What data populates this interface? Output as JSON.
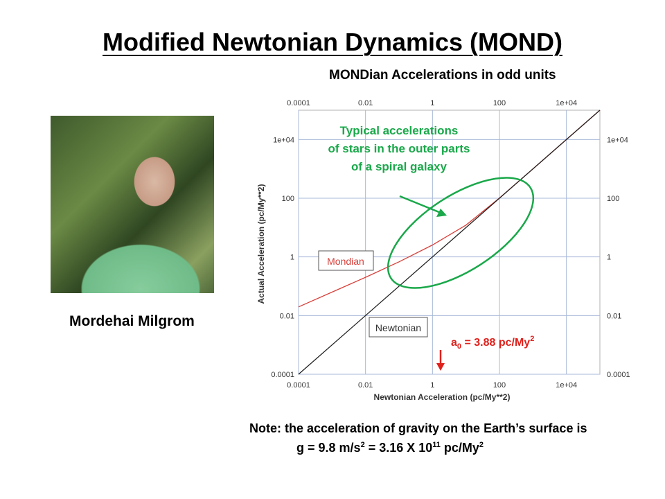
{
  "slide": {
    "title": "Modified Newtonian Dynamics (MOND)",
    "chart_subtitle": "MONDian Accelerations in odd units",
    "photo_caption": "Mordehai Milgrom",
    "note_line1": "Note: the acceleration of gravity on the Earth’s surface is",
    "note_g": "g = 9.8 m/s",
    "note_g_exp": "2",
    "note_eq": " = 3.16 X 10",
    "note_eq_exp": "11",
    "note_unit": " pc/My",
    "note_unit_exp": "2"
  },
  "annotations": {
    "green_text": [
      "Typical accelerations",
      "of stars in the outer parts",
      "of a spiral galaxy"
    ],
    "a0_label_a": "a",
    "a0_label_sub": "0",
    "a0_label_b": " = 3.88 pc/My",
    "a0_label_exp": "2",
    "colors": {
      "green": "#1aa84a",
      "red": "#e0201b",
      "mond_curve": "#d9403a",
      "newton_line": "#222222",
      "grid": "#a8b8d8"
    }
  },
  "chart_data": {
    "type": "line",
    "xlabel": "Newtonian Acceleration (pc/My**2)",
    "ylabel": "Actual Acceleration (pc/My**2)",
    "x_scale": "log",
    "y_scale": "log",
    "xlim": [
      0.0001,
      100000
    ],
    "ylim": [
      0.0001,
      100000
    ],
    "x_ticks": [
      "0.0001",
      "0.01",
      "1",
      "100",
      "1e+04"
    ],
    "y_ticks": [
      "0.0001",
      "0.01",
      "1",
      "100",
      "1e+04"
    ],
    "grid": true,
    "series": [
      {
        "name": "Mondian",
        "color": "#d9403a",
        "x": [
          0.0001,
          0.001,
          0.01,
          0.1,
          1,
          10,
          100,
          1000,
          10000,
          100000
        ],
        "y": [
          0.0198,
          0.0629,
          0.202,
          0.677,
          2.55,
          12.1,
          101,
          1000,
          10000,
          100000
        ]
      },
      {
        "name": "Newtonian",
        "color": "#222222",
        "x": [
          0.0001,
          100000
        ],
        "y": [
          0.0001,
          100000
        ]
      }
    ],
    "a0": 3.88
  }
}
